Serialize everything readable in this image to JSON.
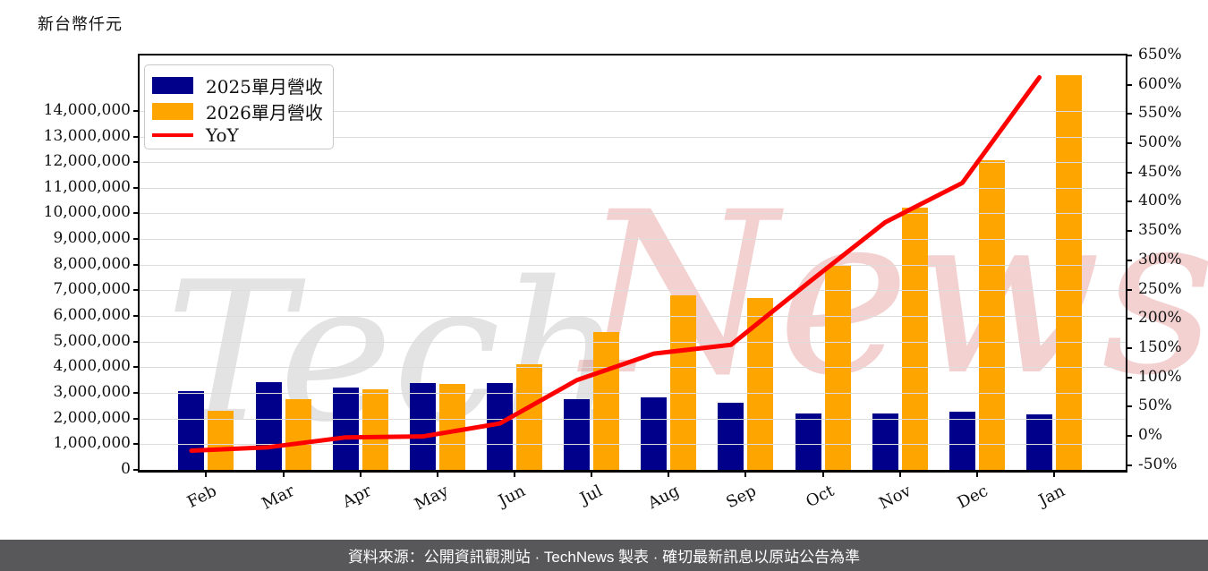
{
  "chart": {
    "unit_label": "新台幣仟元",
    "legend": [
      {
        "label": "2025單月營收",
        "swatch": "bar",
        "color": "#00008B"
      },
      {
        "label": "2026單月營收",
        "swatch": "bar",
        "color": "#FFA500"
      },
      {
        "label": "YoY",
        "swatch": "line",
        "color": "#FF0000"
      }
    ],
    "watermark": {
      "part1": "Tech",
      "part2": "News",
      "gray": "#c9c9c9",
      "red": "#d96b6b"
    }
  },
  "chart_data": {
    "type": "bar",
    "subtype": "grouped bars with YoY line on secondary percent axis",
    "title": "新台幣仟元",
    "categories": [
      "Feb",
      "Mar",
      "Apr",
      "May",
      "Jun",
      "Jul",
      "Aug",
      "Sep",
      "Oct",
      "Nov",
      "Dec",
      "Jan"
    ],
    "series": [
      {
        "name": "2025單月營收",
        "type": "bar",
        "axis": "left",
        "color": "#00008B",
        "values": [
          3060000,
          3420000,
          3220000,
          3380000,
          3390000,
          2760000,
          2830000,
          2620000,
          2200000,
          2200000,
          2270000,
          2160000
        ]
      },
      {
        "name": "2026單月營收",
        "type": "bar",
        "axis": "left",
        "color": "#FFA500",
        "values": [
          2290000,
          2760000,
          3140000,
          3350000,
          4110000,
          5390000,
          6810000,
          6700000,
          7950000,
          10230000,
          12080000,
          15390000
        ]
      },
      {
        "name": "YoY",
        "type": "line",
        "axis": "right",
        "color": "#FF0000",
        "values_pct": [
          -25.2,
          -19.3,
          -2.5,
          -0.9,
          21.2,
          95.3,
          140.6,
          155.7,
          261.4,
          365.0,
          432.2,
          612.5
        ]
      }
    ],
    "left_axis": {
      "unit": "新台幣仟元",
      "min": 0,
      "max": 16160000,
      "tick_step": 1000000,
      "tick_labels": [
        "0",
        "1,000,000",
        "2,000,000",
        "3,000,000",
        "4,000,000",
        "5,000,000",
        "6,000,000",
        "7,000,000",
        "8,000,000",
        "9,000,000",
        "10,000,000",
        "11,000,000",
        "12,000,000",
        "13,000,000",
        "14,000,000"
      ],
      "grid": true
    },
    "right_axis": {
      "min": -58,
      "max": 650,
      "tick_step_pct": 50,
      "tick_labels": [
        "-50%",
        "0%",
        "50%",
        "100%",
        "150%",
        "200%",
        "250%",
        "300%",
        "350%",
        "400%",
        "450%",
        "500%",
        "550%",
        "600%",
        "650%"
      ]
    },
    "legend_position": "upper-left",
    "grid": "horizontal only"
  },
  "footer": {
    "text": "資料來源：公開資訊觀測站 · TechNews 製表 · 確切最新訊息以原站公告為準",
    "background": "#58585b",
    "color": "#ffffff"
  }
}
